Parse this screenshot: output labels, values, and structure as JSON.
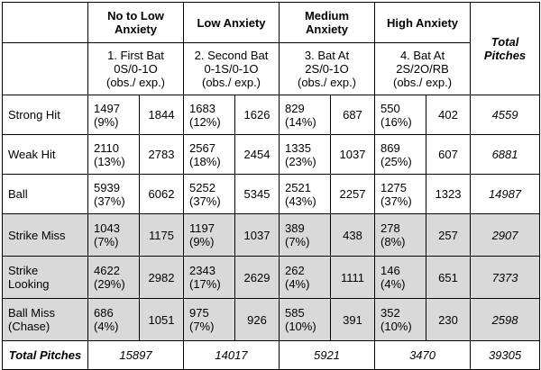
{
  "header": {
    "groups": [
      "No to Low Anxiety",
      "Low Anxiety",
      "Medium Anxiety",
      "High Anxiety"
    ],
    "total_label": "Total Pitches",
    "subheaders": [
      [
        "1. First Bat",
        "0S/0-1O",
        "(obs./ exp.)"
      ],
      [
        "2. Second Bat",
        "0-1S/0-1O",
        "(obs./ exp.)"
      ],
      [
        "3. Bat At",
        "2S/0-1O",
        "(obs./ exp.)"
      ],
      [
        "4. Bat At",
        "2S/2O/RB",
        "(obs./ exp.)"
      ]
    ]
  },
  "rows": [
    {
      "label": [
        "Strong Hit"
      ],
      "cells": [
        [
          "1497",
          "(9%)",
          "1844"
        ],
        [
          "1683",
          "(12%)",
          "1626"
        ],
        [
          "829",
          "(14%)",
          "687"
        ],
        [
          "550",
          "(16%)",
          "402"
        ]
      ],
      "total": "4559"
    },
    {
      "label": [
        "Weak Hit"
      ],
      "cells": [
        [
          "2110",
          "(13%)",
          "2783"
        ],
        [
          "2567",
          "(18%)",
          "2454"
        ],
        [
          "1335",
          "(23%)",
          "1037"
        ],
        [
          "869",
          "(25%)",
          "607"
        ]
      ],
      "total": "6881"
    },
    {
      "label": [
        "Ball"
      ],
      "cells": [
        [
          "5939",
          "(37%)",
          "6062"
        ],
        [
          "5252",
          "(37%)",
          "5345"
        ],
        [
          "2521",
          "(43%)",
          "2257"
        ],
        [
          "1275",
          "(37%)",
          "1323"
        ]
      ],
      "total": "14987"
    },
    {
      "label": [
        "Strike Miss"
      ],
      "cells": [
        [
          "1043",
          "(7%)",
          "1175"
        ],
        [
          "1197",
          "(9%)",
          "1037"
        ],
        [
          "389",
          "(7%)",
          "438"
        ],
        [
          "278",
          "(8%)",
          "257"
        ]
      ],
      "total": "2907"
    },
    {
      "label": [
        "Strike",
        "Looking"
      ],
      "cells": [
        [
          "4622",
          "(29%)",
          "2982"
        ],
        [
          "2343",
          "(17%)",
          "2629"
        ],
        [
          "262",
          "(4%)",
          "1111"
        ],
        [
          "146",
          "(4%)",
          "651"
        ]
      ],
      "total": "7373"
    },
    {
      "label": [
        "Ball Miss",
        "(Chase)"
      ],
      "cells": [
        [
          "686",
          "(4%)",
          "1051"
        ],
        [
          "975",
          "(7%)",
          "926"
        ],
        [
          "585",
          "(10%)",
          "391"
        ],
        [
          "352",
          "(10%)",
          "230"
        ]
      ],
      "total": "2598"
    }
  ],
  "totals": {
    "label": "Total Pitches",
    "values": [
      "15897",
      "14017",
      "5921",
      "3470"
    ],
    "grand": "39305"
  }
}
